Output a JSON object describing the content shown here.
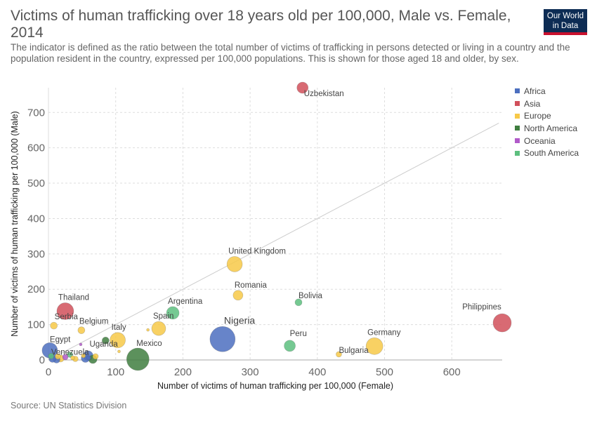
{
  "header": {
    "title": "Victims of human trafficking over 18 years old per 100,000, Male vs. Female, 2014",
    "subtitle": "The indicator is defined as the ratio between the total number of victims of trafficking in persons detected or living in a country and the population resident in the country, expressed per 100,000 populations. This is shown for those aged 18 and older, by sex.",
    "logo_line1": "Our World",
    "logo_line2": "in Data"
  },
  "footer": {
    "source": "Source: UN Statistics Division"
  },
  "colors": {
    "Africa": "#4c6fbf",
    "Asia": "#d1505b",
    "Europe": "#f7c948",
    "North America": "#3f7e3f",
    "Oceania": "#b15ac9",
    "South America": "#5dbf7f"
  },
  "chart_data": {
    "type": "scatter",
    "title": "Victims of human trafficking over 18 years old per 100,000, Male vs. Female, 2014",
    "xlabel": "Number of victims of human trafficking per 100,000 (Female)",
    "ylabel": "Number of victims of human trafficking per 100,000 (Male)",
    "xlim": [
      0,
      675
    ],
    "ylim": [
      0,
      770
    ],
    "xticks": [
      0,
      100,
      200,
      300,
      400,
      500,
      600
    ],
    "yticks": [
      0,
      100,
      200,
      300,
      400,
      500,
      600,
      700
    ],
    "grid": true,
    "legend_position": "right",
    "legend": [
      "Africa",
      "Asia",
      "Europe",
      "North America",
      "Oceania",
      "South America"
    ],
    "reference_line": {
      "from": [
        0,
        0
      ],
      "to": [
        670,
        670
      ]
    },
    "points": [
      {
        "label": "Uzbekistan",
        "x": 378,
        "y": 770,
        "region": "Asia",
        "size": 8
      },
      {
        "label": "United Kingdom",
        "x": 277,
        "y": 271,
        "region": "Europe",
        "size": 11
      },
      {
        "label": "Romania",
        "x": 282,
        "y": 183,
        "region": "Europe",
        "size": 7
      },
      {
        "label": "Bolivia",
        "x": 372,
        "y": 163,
        "region": "South America",
        "size": 5
      },
      {
        "label": "Argentina",
        "x": 185,
        "y": 133,
        "region": "South America",
        "size": 9
      },
      {
        "label": "Thailand",
        "x": 25,
        "y": 138,
        "region": "Asia",
        "size": 12
      },
      {
        "label": "Philippines",
        "x": 675,
        "y": 105,
        "region": "Asia",
        "size": 13
      },
      {
        "label": "Serbia",
        "x": 8,
        "y": 97,
        "region": "Europe",
        "size": 5
      },
      {
        "label": "Spain",
        "x": 164,
        "y": 89,
        "region": "Europe",
        "size": 10
      },
      {
        "label": "Belgium",
        "x": 49,
        "y": 84,
        "region": "Europe",
        "size": 5
      },
      {
        "label": "Nigeria",
        "x": 259,
        "y": 59,
        "region": "Africa",
        "size": 18
      },
      {
        "label": "Italy",
        "x": 103,
        "y": 56,
        "region": "Europe",
        "size": 11
      },
      {
        "label": "Peru",
        "x": 359,
        "y": 40,
        "region": "South America",
        "size": 8
      },
      {
        "label": "Germany",
        "x": 485,
        "y": 39,
        "region": "Europe",
        "size": 12
      },
      {
        "label": "Egypt",
        "x": 2,
        "y": 27,
        "region": "Africa",
        "size": 11
      },
      {
        "label": "Bulgaria",
        "x": 432,
        "y": 16,
        "region": "Europe",
        "size": 4
      },
      {
        "label": "Uganda",
        "x": 59,
        "y": 12,
        "region": "Africa",
        "size": 7
      },
      {
        "label": "Venezuela",
        "x": 4,
        "y": 11,
        "region": "South America",
        "size": 4
      },
      {
        "label": "Mexico",
        "x": 133,
        "y": 2,
        "region": "North America",
        "size": 16
      },
      {
        "label": "",
        "x": 85,
        "y": 55,
        "region": "North America",
        "size": 5
      },
      {
        "label": "",
        "x": 148,
        "y": 85,
        "region": "Europe",
        "size": 2
      },
      {
        "label": "",
        "x": 105,
        "y": 24,
        "region": "Europe",
        "size": 2
      },
      {
        "label": "",
        "x": 66,
        "y": 2,
        "region": "North America",
        "size": 6
      },
      {
        "label": "",
        "x": 55,
        "y": 5,
        "region": "Africa",
        "size": 6
      },
      {
        "label": "",
        "x": 32,
        "y": 15,
        "region": "South America",
        "size": 4
      },
      {
        "label": "",
        "x": 25,
        "y": 8,
        "region": "Oceania",
        "size": 4
      },
      {
        "label": "",
        "x": 18,
        "y": 4,
        "region": "Europe",
        "size": 5
      },
      {
        "label": "",
        "x": 12,
        "y": 1,
        "region": "Africa",
        "size": 5
      },
      {
        "label": "",
        "x": 40,
        "y": 3,
        "region": "Europe",
        "size": 4
      },
      {
        "label": "",
        "x": 48,
        "y": 44,
        "region": "Oceania",
        "size": 2
      },
      {
        "label": "",
        "x": 70,
        "y": 10,
        "region": "Europe",
        "size": 4
      },
      {
        "label": "",
        "x": 14,
        "y": 10,
        "region": "Europe",
        "size": 4
      },
      {
        "label": "",
        "x": 6,
        "y": 3,
        "region": "Africa",
        "size": 5
      },
      {
        "label": "",
        "x": 52,
        "y": 12,
        "region": "Europe",
        "size": 3
      },
      {
        "label": "",
        "x": 36,
        "y": 6,
        "region": "Europe",
        "size": 3
      },
      {
        "label": "",
        "x": 60,
        "y": 6,
        "region": "Africa",
        "size": 3
      }
    ]
  }
}
